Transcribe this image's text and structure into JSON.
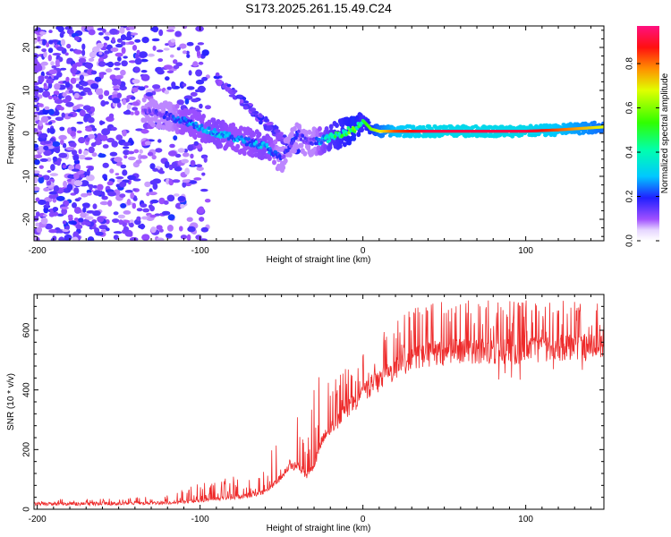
{
  "title": "S173.2025.261.15.49.C24",
  "chart_data": [
    {
      "type": "heatmap",
      "title": "S173.2025.261.15.49.C24",
      "xlabel": "Height of straight line (km)",
      "ylabel": "Frequency (Hz)",
      "xlim": [
        -202,
        148
      ],
      "ylim": [
        -25,
        25
      ],
      "xticks": [
        -200,
        -100,
        0,
        100
      ],
      "xtick_labels": [
        "-200",
        "-100",
        "0",
        "100"
      ],
      "yticks": [
        -20,
        -10,
        0,
        10,
        20
      ],
      "ytick_labels": [
        "-20",
        "-10",
        "0",
        "10",
        "20"
      ],
      "colorbar": {
        "label": "Normalized spectral amplitude",
        "range": [
          0,
          0.97
        ],
        "ticks": [
          0.0,
          0.2,
          0.4,
          0.6,
          0.8
        ],
        "tick_labels": [
          "0.0",
          "0.2",
          "0.4",
          "0.6",
          "0.8"
        ]
      },
      "ridge": {
        "description_points_x": [
          -130,
          -120,
          -110,
          -100,
          -90,
          -80,
          -70,
          -60,
          -50,
          -45,
          -40,
          -35,
          -30,
          -20,
          -10,
          -5,
          0,
          5,
          10,
          20,
          40,
          60,
          80,
          100,
          120,
          148
        ],
        "frequency_hz": [
          5,
          4,
          3,
          1.5,
          0,
          -1,
          -2,
          -3,
          -6,
          -3,
          0,
          -2,
          -2,
          -1,
          0.5,
          1,
          3,
          1,
          0.5,
          0.5,
          0.5,
          0.5,
          0.5,
          0.5,
          0.8,
          1.5
        ],
        "amplitude": [
          0.15,
          0.2,
          0.3,
          0.3,
          0.35,
          0.3,
          0.3,
          0.35,
          0.2,
          0.2,
          0.2,
          0.15,
          0.2,
          0.45,
          0.55,
          0.6,
          0.5,
          0.6,
          0.7,
          0.85,
          0.95,
          0.95,
          0.95,
          0.95,
          0.85,
          0.7
        ]
      }
    },
    {
      "type": "line",
      "xlabel": "Height of straight line (km)",
      "ylabel": "SNR (10 * v/v)",
      "xlim": [
        -202,
        148
      ],
      "ylim": [
        0,
        720
      ],
      "xticks": [
        -200,
        -100,
        0,
        100
      ],
      "xtick_labels": [
        "-200",
        "-100",
        "0",
        "100"
      ],
      "yticks": [
        0,
        200,
        400,
        600
      ],
      "ytick_labels": [
        "0",
        "200",
        "400",
        "600"
      ],
      "series": [
        {
          "name": "SNR",
          "color": "#ee2b2b",
          "x": [
            -202,
            -180,
            -160,
            -140,
            -120,
            -100,
            -90,
            -80,
            -70,
            -60,
            -55,
            -50,
            -45,
            -40,
            -35,
            -30,
            -25,
            -20,
            -15,
            -10,
            -5,
            0,
            5,
            10,
            15,
            20,
            25,
            30,
            40,
            50,
            60,
            80,
            100,
            120,
            148
          ],
          "baseline": [
            18,
            18,
            18,
            20,
            22,
            28,
            35,
            40,
            45,
            60,
            80,
            110,
            140,
            150,
            110,
            150,
            230,
            270,
            300,
            330,
            360,
            390,
            410,
            430,
            450,
            470,
            500,
            510,
            520,
            525,
            530,
            530,
            530,
            540,
            550
          ],
          "spike_top": [
            35,
            35,
            35,
            40,
            50,
            90,
            100,
            110,
            120,
            150,
            280,
            360,
            330,
            310,
            280,
            400,
            560,
            450,
            460,
            480,
            500,
            520,
            540,
            590,
            610,
            630,
            650,
            680,
            690,
            700,
            700,
            700,
            700,
            700,
            700
          ]
        }
      ]
    }
  ]
}
